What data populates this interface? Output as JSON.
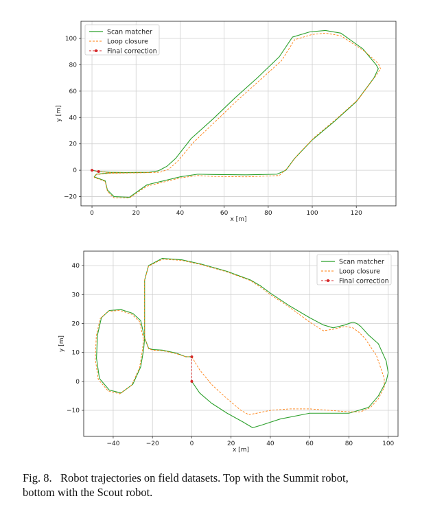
{
  "chart_data": [
    {
      "type": "line",
      "title": "",
      "xlabel": "x [m]",
      "ylabel": "y [m]",
      "xlim": [
        -5,
        138
      ],
      "ylim": [
        -27,
        113
      ],
      "grid": true,
      "legend_position": "top-left",
      "xticks": [
        0,
        20,
        40,
        60,
        80,
        100,
        120
      ],
      "yticks": [
        -20,
        0,
        20,
        40,
        60,
        80,
        100
      ],
      "series": [
        {
          "name": "Scan matcher",
          "color": "#2ca02c",
          "style": "solid",
          "x": [
            0,
            3,
            8,
            15,
            26,
            30,
            34,
            38,
            45,
            55,
            65,
            75,
            85,
            91,
            99,
            106,
            113,
            123,
            129,
            130,
            128,
            120,
            110,
            100,
            92,
            88,
            84,
            70,
            55,
            48,
            40,
            30,
            25,
            17,
            10,
            7,
            6,
            1,
            2,
            8,
            20,
            27
          ],
          "y": [
            0,
            -1,
            -1.5,
            -1.7,
            -1.5,
            -0.5,
            3,
            9,
            24,
            39,
            55,
            70,
            86,
            101,
            105,
            106,
            104,
            92,
            80,
            77,
            70,
            52,
            37,
            23,
            9,
            0,
            -3,
            -3.5,
            -3.2,
            -3,
            -5,
            -9,
            -11,
            -20.5,
            -20,
            -15,
            -8,
            -5,
            -3,
            -2,
            -1.8,
            -1.6
          ]
        },
        {
          "name": "Loop closure",
          "color": "#ff7f0e",
          "style": "dashed",
          "x": [
            3,
            8,
            15,
            26,
            31,
            35,
            39,
            46,
            56,
            66,
            76,
            86,
            92,
            100,
            106,
            113,
            124,
            130,
            131,
            129,
            121,
            111,
            101,
            93,
            89,
            85,
            70,
            55,
            48,
            40,
            30,
            25,
            17,
            10,
            7,
            6,
            1,
            2,
            8,
            20,
            27
          ],
          "y": [
            -1,
            -1.8,
            -2,
            -1.8,
            -1.5,
            1,
            7,
            21,
            37,
            53,
            68,
            83,
            99,
            103,
            104,
            102,
            90,
            81,
            77,
            72,
            54,
            39,
            25,
            11,
            2,
            -4,
            -5,
            -4.7,
            -4,
            -5.8,
            -10,
            -12,
            -21,
            -21,
            -16,
            -8.5,
            -5.5,
            -3.3,
            -2.3,
            -2,
            -1.8
          ]
        },
        {
          "name": "Final correction",
          "color": "#d62728",
          "style": "dashed",
          "marker": "circle",
          "x": [
            0,
            3
          ],
          "y": [
            0,
            -1
          ]
        }
      ]
    },
    {
      "type": "line",
      "title": "",
      "xlabel": "x [m]",
      "ylabel": "y [m]",
      "xlim": [
        -55,
        105
      ],
      "ylim": [
        -19,
        45
      ],
      "grid": true,
      "legend_position": "top-right",
      "xticks": [
        -40,
        -20,
        0,
        20,
        40,
        60,
        80,
        100
      ],
      "yticks": [
        -10,
        0,
        10,
        20,
        30,
        40
      ],
      "series": [
        {
          "name": "Scan matcher",
          "color": "#2ca02c",
          "style": "solid",
          "x": [
            0,
            4,
            10,
            18,
            26,
            31,
            36,
            45,
            60,
            80,
            90,
            95,
            99,
            100,
            99,
            95,
            90,
            86,
            84,
            82,
            78,
            72,
            67,
            60,
            50,
            40,
            35,
            30,
            18,
            5,
            -5,
            -15,
            -22,
            -24,
            -24,
            -22,
            -20,
            -15,
            -8,
            -3,
            0
          ],
          "y": [
            0,
            -4,
            -7.5,
            -11,
            -14,
            -16,
            -15,
            -13,
            -11,
            -11,
            -9,
            -5,
            0,
            3,
            7,
            13,
            16,
            19,
            20,
            20.5,
            19.5,
            18.5,
            19.5,
            22,
            26,
            30.5,
            33,
            35,
            38,
            40.5,
            42,
            42.5,
            40,
            35,
            15,
            11.5,
            11,
            10.8,
            9.8,
            8.5,
            8.5
          ]
        },
        {
          "name": "Loop closure",
          "color": "#ff7f0e",
          "style": "dashed",
          "x": [
            0,
            4,
            10,
            18,
            25,
            29,
            33,
            40,
            50,
            60,
            70,
            80,
            86,
            91,
            95,
            98,
            98,
            96,
            94,
            91,
            88,
            85,
            82,
            78,
            72,
            67,
            60,
            50,
            40,
            35,
            30,
            18,
            5,
            -5,
            -15,
            -22,
            -24,
            -24,
            -22,
            -20,
            -15,
            -8,
            -3,
            0
          ],
          "y": [
            8.5,
            4,
            -1,
            -6,
            -10,
            -11.5,
            -11,
            -10,
            -9.5,
            -9.5,
            -10,
            -10.5,
            -10.5,
            -9,
            -6,
            -2,
            1,
            5,
            9,
            12,
            15,
            17,
            18.5,
            19,
            18,
            17.5,
            20.5,
            25.5,
            30,
            32.5,
            34.8,
            37.8,
            40.3,
            41.8,
            42.2,
            39.8,
            35,
            15,
            11.3,
            10.8,
            10.6,
            9.6,
            8.5,
            8.5
          ]
        },
        {
          "name": "Final correction",
          "color": "#d62728",
          "style": "dashed",
          "marker": "circle",
          "x": [
            0,
            0
          ],
          "y": [
            0,
            8.5
          ]
        }
      ],
      "inner_loop": {
        "x": [
          -24,
          -26,
          -30,
          -36,
          -42,
          -46,
          -48,
          -48.5,
          -47,
          -42,
          -36,
          -30,
          -26,
          -24.5,
          -24
        ],
        "y": [
          15,
          21,
          23.5,
          24.8,
          24.5,
          22,
          16,
          8,
          1,
          -3,
          -4,
          -1,
          5,
          11,
          15
        ]
      }
    }
  ],
  "caption": {
    "line1": "Fig. 8.   Robot trajectories on field datasets. Top with the Summit robot,",
    "line2": "bottom with the Scout robot."
  }
}
